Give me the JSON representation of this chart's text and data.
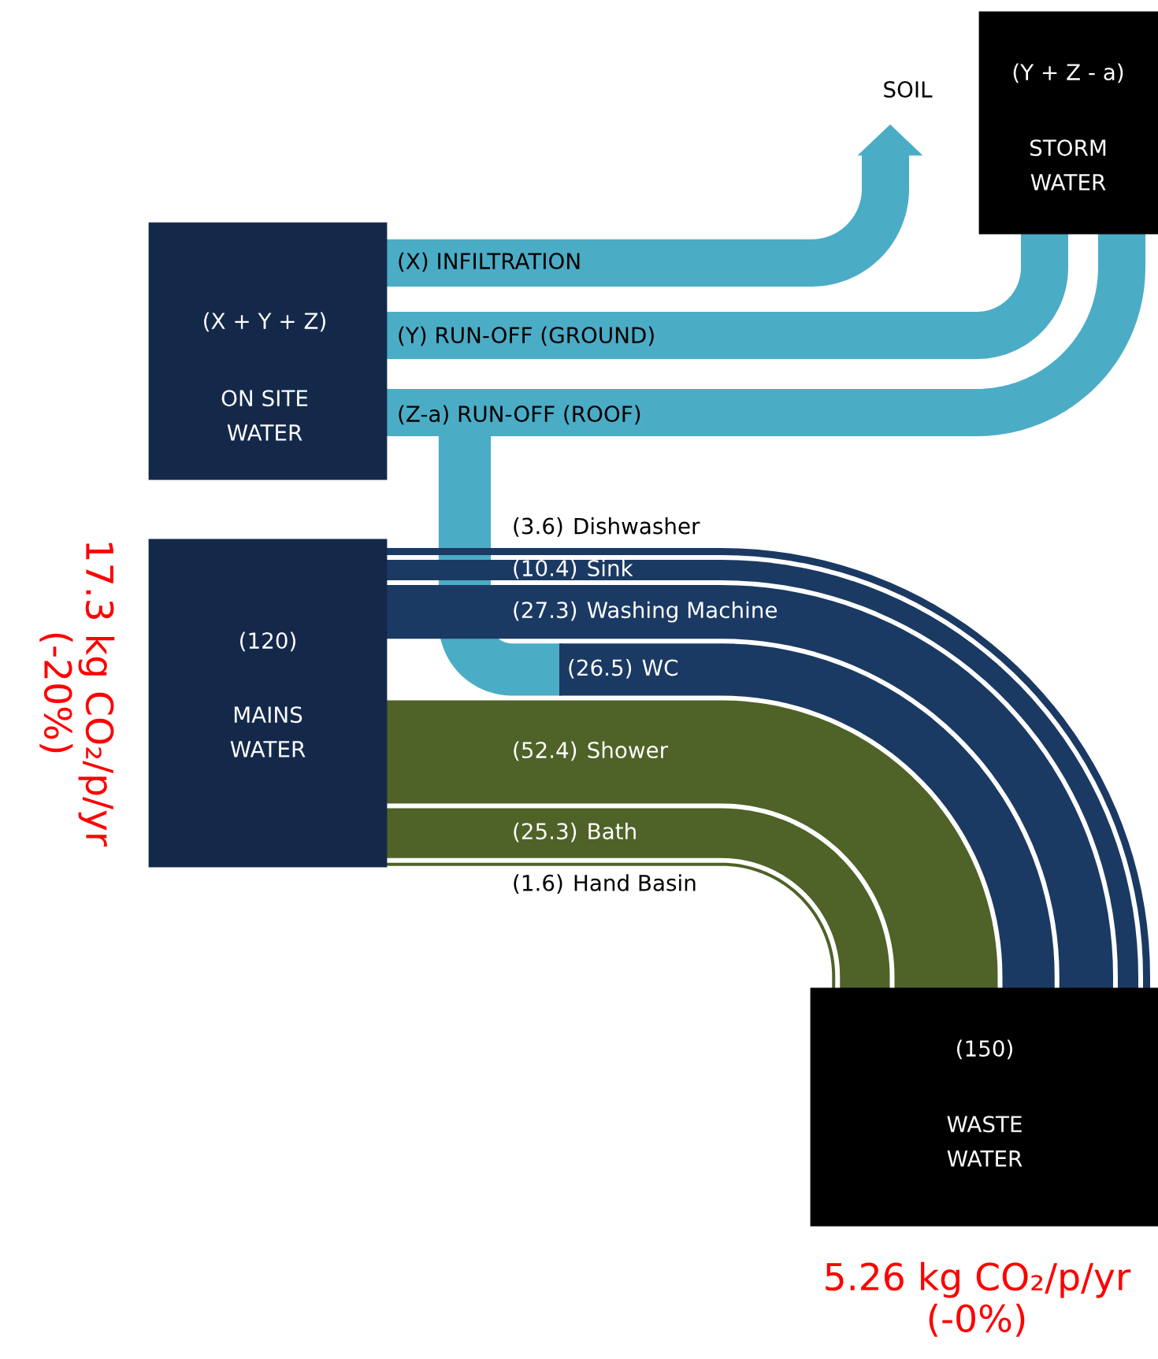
{
  "chart_data": {
    "type": "other",
    "categories": [
      "Dishwasher",
      "Sink",
      "Washing Machine",
      "WC",
      "Shower",
      "Bath",
      "Hand Basin"
    ],
    "values": [
      3.6,
      10.4,
      27.3,
      26.5,
      52.4,
      25.3,
      1.6
    ],
    "value_labels": [
      "(3.6)",
      "(10.4)",
      "(27.3)",
      "(26.5)",
      "(52.4)",
      "(25.3)",
      "(1.6)"
    ],
    "colors": [
      "#1b3a63",
      "#1b3a63",
      "#1b3a63",
      "#1b3a63",
      "#4f6228",
      "#4f6228",
      "#4f6228"
    ],
    "annotations": [
      "(X + Y + Z)",
      "ON SITE\nWATER",
      "(120)",
      "MAINS\nWATER",
      "(150)",
      "WASTE\nWATER",
      "(Y + Z - a)",
      "STORM\nWATER",
      "SOIL",
      "(X) INFILTRATION",
      "(Y) RUN-OFF (GROUND)",
      "(Z-a) RUN-OFF (ROOF)",
      "17.3 kg CO₂/p/yr\n(-20%)",
      "5.26 kg CO₂/p/yr\n(-0%)"
    ]
  }
}
